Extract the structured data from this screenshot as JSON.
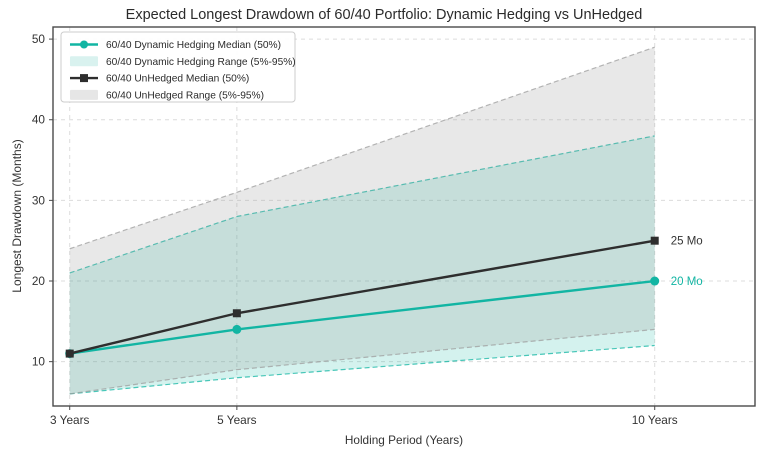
{
  "chart_data": {
    "type": "line",
    "title": "Expected Longest Drawdown of 60/40 Portfolio: Dynamic Hedging vs UnHedged",
    "xlabel": "Holding Period (Years)",
    "ylabel": "Longest Drawdown (Months)",
    "x": [
      3,
      5,
      10
    ],
    "x_tick_labels": [
      "3 Years",
      "5 Years",
      "10 Years"
    ],
    "y_ticks": [
      10,
      20,
      30,
      40,
      50
    ],
    "xlim": [
      2.8,
      11.2
    ],
    "ylim": [
      4.5,
      51.5
    ],
    "grid": true,
    "legend_position": "upper-left",
    "series": [
      {
        "name": "60/40 Dynamic Hedging Median (50%)",
        "kind": "line",
        "marker": "circle",
        "color": "#12b5a3",
        "values": [
          11,
          14,
          20
        ],
        "end_label": "20 Mo",
        "end_label_color": "#12b5a3"
      },
      {
        "name": "60/40 Dynamic Hedging Range (5%-95%)",
        "kind": "band",
        "color": "#12b5a3",
        "fill": "rgba(18,181,163,0.18)",
        "swatch": "#d9f2ef",
        "lower": [
          6,
          8,
          12
        ],
        "upper": [
          21,
          28,
          38
        ]
      },
      {
        "name": "60/40 UnHedged Median (50%)",
        "kind": "line",
        "marker": "square",
        "color": "#2e2e2e",
        "values": [
          11,
          16,
          25
        ],
        "end_label": "25 Mo",
        "end_label_color": "#333333"
      },
      {
        "name": "60/40 UnHedged Range (5%-95%)",
        "kind": "band",
        "color": "#9e9e9e",
        "fill": "rgba(150,150,150,0.22)",
        "swatch": "#e6e6e6",
        "lower": [
          6,
          9,
          14
        ],
        "upper": [
          24,
          31,
          49
        ]
      }
    ],
    "colors": {
      "gridline": "#dcdcdc",
      "spine": "#4a4a4a",
      "tick_label": "#333333",
      "legend_border": "#cccccc",
      "legend_text": "#2b2b2b"
    }
  }
}
